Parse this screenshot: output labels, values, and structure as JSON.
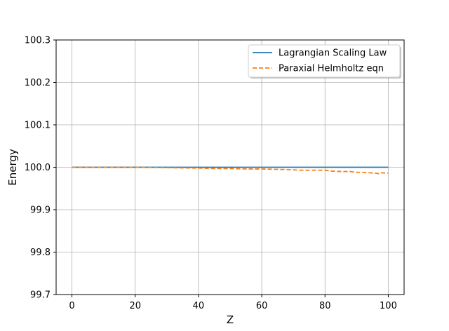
{
  "chart_data": {
    "type": "line",
    "title": "",
    "xlabel": "Z",
    "ylabel": "Energy",
    "xlim": [
      -5,
      105
    ],
    "ylim": [
      99.7,
      100.3
    ],
    "xticks": [
      0,
      20,
      40,
      60,
      80,
      100
    ],
    "yticks": [
      99.7,
      99.8,
      99.9,
      100.0,
      100.1,
      100.2,
      100.3
    ],
    "xtick_labels": [
      "0",
      "20",
      "40",
      "60",
      "80",
      "100"
    ],
    "ytick_labels": [
      "99.7",
      "99.8",
      "99.9",
      "100.0",
      "100.1",
      "100.2",
      "100.3"
    ],
    "grid": true,
    "legend_position": "top-right",
    "series": [
      {
        "name": "Lagrangian Scaling Law",
        "color": "#1f77b4",
        "style": "solid",
        "x": [
          0,
          100
        ],
        "y": [
          100.0,
          100.0
        ]
      },
      {
        "name": "Paraxial Helmholtz eqn",
        "color": "#ff7f0e",
        "style": "dashed",
        "x": [
          0,
          10,
          20,
          30,
          40,
          45,
          50,
          55,
          60,
          65,
          70,
          72,
          75,
          78,
          80,
          82,
          85,
          88,
          90,
          92,
          94,
          96,
          97,
          98,
          100
        ],
        "y": [
          100.0,
          100.0,
          100.0,
          99.999,
          99.998,
          99.997,
          99.997,
          99.996,
          99.996,
          99.995,
          99.994,
          99.993,
          99.993,
          99.993,
          99.993,
          99.991,
          99.99,
          99.99,
          99.988,
          99.988,
          99.987,
          99.986,
          99.985,
          99.987,
          99.986
        ]
      }
    ]
  }
}
